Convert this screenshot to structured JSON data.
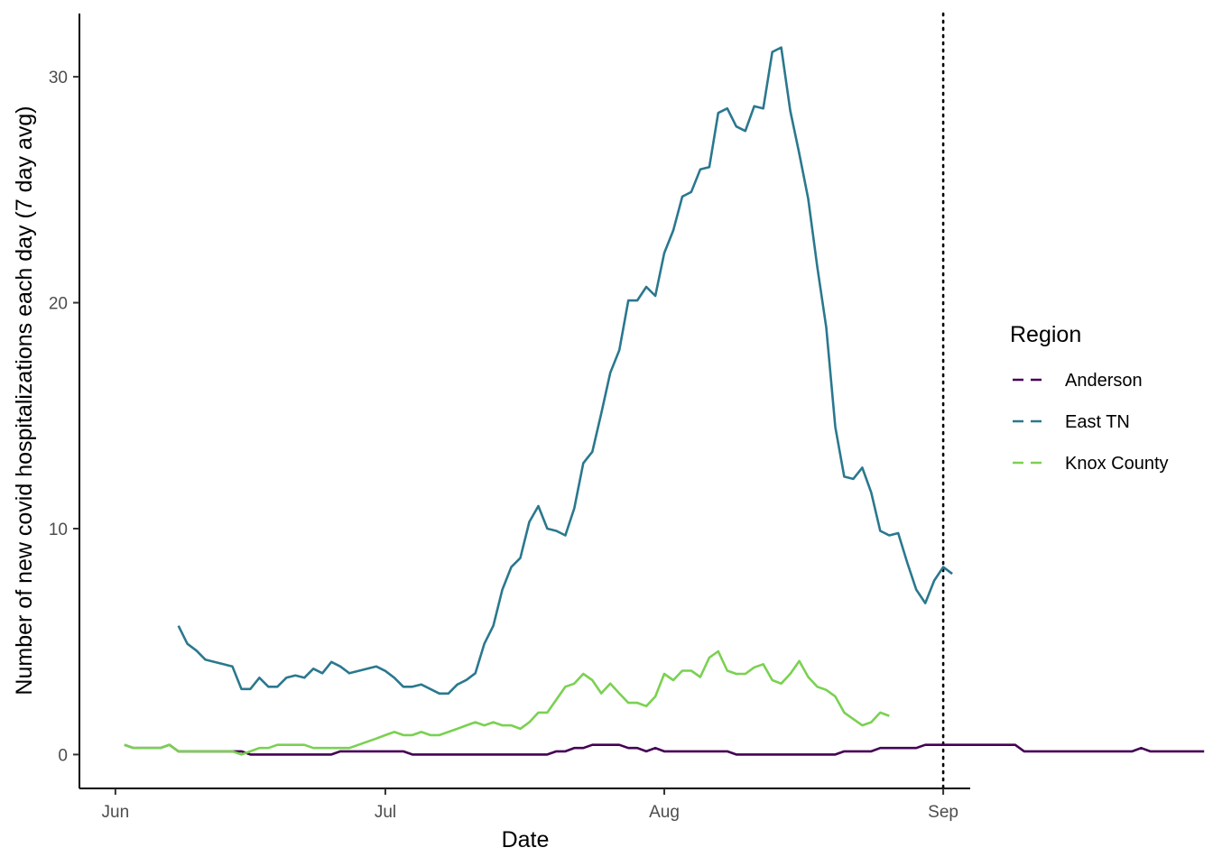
{
  "chart_data": {
    "type": "line",
    "xlabel": "Date",
    "ylabel": "Number of new covid hospitalizations each day (7 day avg)",
    "x_ticks": [
      {
        "label": "Jun",
        "date": "2021-06-01"
      },
      {
        "label": "Jul",
        "date": "2021-07-01"
      },
      {
        "label": "Aug",
        "date": "2021-08-01"
      },
      {
        "label": "Sep",
        "date": "2021-09-01"
      }
    ],
    "y_ticks": [
      0,
      10,
      20,
      30
    ],
    "xlim": [
      "2021-05-28",
      "2021-09-04"
    ],
    "ylim": [
      -1.5,
      32.8
    ],
    "grid": false,
    "reference_line": {
      "date": "2021-09-01",
      "style": "dotted"
    },
    "legend": {
      "title": "Region",
      "position": "right"
    },
    "series": [
      {
        "name": "Anderson",
        "color": "#440154",
        "start_date": "2021-06-02",
        "values": [
          0.43,
          0.29,
          0.29,
          0.29,
          0.29,
          0.43,
          0.14,
          0.14,
          0.14,
          0.14,
          0.14,
          0.14,
          0.14,
          0.14,
          0,
          0,
          0,
          0,
          0,
          0,
          0,
          0,
          0,
          0,
          0.14,
          0.14,
          0.14,
          0.14,
          0.14,
          0.14,
          0.14,
          0.14,
          0,
          0,
          0,
          0,
          0,
          0,
          0,
          0,
          0,
          0,
          0,
          0,
          0,
          0,
          0,
          0,
          0.14,
          0.14,
          0.29,
          0.29,
          0.43,
          0.43,
          0.43,
          0.43,
          0.29,
          0.29,
          0.14,
          0.29,
          0.14,
          0.14,
          0.14,
          0.14,
          0.14,
          0.14,
          0.14,
          0.14,
          0,
          0,
          0,
          0,
          0,
          0,
          0,
          0,
          0,
          0,
          0,
          0,
          0.14,
          0.14,
          0.14,
          0.14,
          0.29,
          0.29,
          0.29,
          0.29,
          0.29,
          0.43,
          0.43,
          0.43,
          0.43,
          0.43,
          0.43,
          0.43,
          0.43,
          0.43,
          0.43,
          0.43,
          0.14,
          0.14,
          0.14,
          0.14,
          0.14,
          0.14,
          0.14,
          0.14,
          0.14,
          0.14,
          0.14,
          0.14,
          0.14,
          0.29,
          0.14,
          0.14,
          0.14,
          0.14,
          0.14,
          0.14,
          0.14
        ]
      },
      {
        "name": "East TN",
        "color": "#2A788E",
        "start_date": "2021-06-08",
        "values": [
          5.7,
          4.9,
          4.6,
          4.2,
          4.1,
          4.0,
          3.9,
          2.9,
          2.9,
          3.4,
          3.0,
          3.0,
          3.4,
          3.5,
          3.4,
          3.8,
          3.6,
          4.1,
          3.9,
          3.6,
          3.7,
          3.8,
          3.9,
          3.7,
          3.4,
          3.0,
          3.0,
          3.1,
          2.9,
          2.7,
          2.7,
          3.1,
          3.3,
          3.6,
          4.9,
          5.7,
          7.3,
          8.3,
          8.7,
          10.3,
          11.0,
          10.0,
          9.9,
          9.7,
          10.9,
          12.9,
          13.4,
          15.1,
          16.9,
          17.9,
          20.1,
          20.1,
          20.7,
          20.3,
          22.2,
          23.2,
          24.7,
          24.9,
          25.9,
          26.0,
          28.4,
          28.6,
          27.8,
          27.6,
          28.7,
          28.6,
          31.1,
          31.3,
          28.5,
          26.6,
          24.6,
          21.6,
          18.9,
          14.5,
          12.3,
          12.2,
          12.7,
          11.6,
          9.9,
          9.7,
          9.8,
          8.5,
          7.3,
          6.7,
          7.7,
          8.3,
          8.0
        ]
      },
      {
        "name": "Knox County",
        "color": "#7AD151",
        "start_date": "2021-06-02",
        "values": [
          0.43,
          0.29,
          0.29,
          0.29,
          0.29,
          0.43,
          0.14,
          0.14,
          0.14,
          0.14,
          0.14,
          0.14,
          0.14,
          0.0,
          0.14,
          0.29,
          0.29,
          0.43,
          0.43,
          0.43,
          0.43,
          0.29,
          0.29,
          0.29,
          0.29,
          0.29,
          0.43,
          0.57,
          0.71,
          0.86,
          1.0,
          0.86,
          0.86,
          1.0,
          0.86,
          0.86,
          1.0,
          1.14,
          1.29,
          1.43,
          1.29,
          1.43,
          1.29,
          1.29,
          1.14,
          1.43,
          1.86,
          1.86,
          2.43,
          3.0,
          3.14,
          3.57,
          3.29,
          2.71,
          3.14,
          2.71,
          2.29,
          2.29,
          2.14,
          2.57,
          3.57,
          3.29,
          3.71,
          3.71,
          3.43,
          4.29,
          4.57,
          3.71,
          3.57,
          3.57,
          3.86,
          4.0,
          3.29,
          3.14,
          3.57,
          4.14,
          3.43,
          3.0,
          2.86,
          2.57,
          1.86,
          1.57,
          1.29,
          1.43,
          1.86,
          1.71
        ]
      }
    ]
  }
}
